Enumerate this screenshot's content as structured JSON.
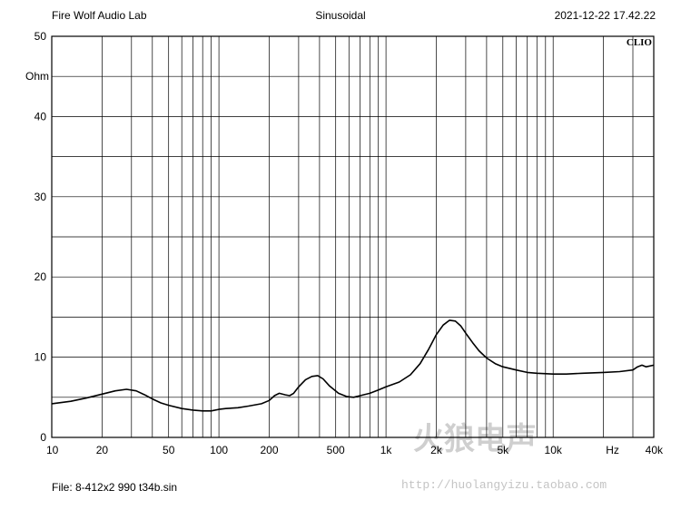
{
  "header": {
    "left": "Fire Wolf Audio Lab",
    "center": "Sinusoidal",
    "right": "2021-12-22 17.42.22"
  },
  "footer": {
    "file": "File: 8-412x2 990 t34b.sin"
  },
  "logo": {
    "text": "CLIO"
  },
  "watermark": {
    "main": "火狼电声",
    "url": "http://huolangyizu.taobao.com"
  },
  "chart_data": {
    "type": "line",
    "xscale": "log",
    "xlim": [
      10,
      40000
    ],
    "ylim": [
      0,
      50
    ],
    "ylabel": "Ohm",
    "xunit": "Hz",
    "grid": true,
    "x_ticks": [
      {
        "v": 10,
        "label": "10"
      },
      {
        "v": 20,
        "label": "20"
      },
      {
        "v": 50,
        "label": "50"
      },
      {
        "v": 100,
        "label": "100"
      },
      {
        "v": 200,
        "label": "200"
      },
      {
        "v": 500,
        "label": "500"
      },
      {
        "v": 1000,
        "label": "1k"
      },
      {
        "v": 2000,
        "label": "2k"
      },
      {
        "v": 5000,
        "label": "5k"
      },
      {
        "v": 10000,
        "label": "10k"
      },
      {
        "v": 40000,
        "label": "40k"
      }
    ],
    "y_ticks": [
      0,
      10,
      20,
      30,
      40,
      50
    ],
    "series": [
      {
        "color": "#000000",
        "x": [
          10,
          13,
          16,
          20,
          24,
          28,
          32,
          36,
          40,
          45,
          50,
          60,
          70,
          80,
          90,
          100,
          110,
          130,
          150,
          180,
          200,
          215,
          230,
          250,
          265,
          280,
          300,
          330,
          360,
          390,
          420,
          460,
          520,
          580,
          640,
          700,
          800,
          900,
          1000,
          1200,
          1400,
          1600,
          1800,
          2000,
          2200,
          2400,
          2600,
          2800,
          3000,
          3300,
          3600,
          4000,
          4500,
          5000,
          6000,
          7000,
          8000,
          10000,
          12000,
          15000,
          20000,
          25000,
          30000,
          32000,
          34000,
          36000,
          40000
        ],
        "y": [
          4.2,
          4.5,
          4.9,
          5.4,
          5.8,
          6.0,
          5.8,
          5.3,
          4.8,
          4.3,
          4.0,
          3.6,
          3.4,
          3.3,
          3.3,
          3.5,
          3.6,
          3.7,
          3.9,
          4.2,
          4.6,
          5.2,
          5.5,
          5.3,
          5.2,
          5.5,
          6.3,
          7.2,
          7.6,
          7.7,
          7.3,
          6.4,
          5.5,
          5.1,
          5.0,
          5.2,
          5.5,
          5.9,
          6.3,
          6.9,
          7.8,
          9.2,
          11.0,
          12.8,
          14.0,
          14.6,
          14.5,
          13.9,
          13.0,
          11.8,
          10.8,
          9.9,
          9.2,
          8.8,
          8.4,
          8.1,
          8.0,
          7.9,
          7.9,
          8.0,
          8.1,
          8.2,
          8.4,
          8.8,
          9.0,
          8.8,
          9.0
        ]
      }
    ]
  }
}
